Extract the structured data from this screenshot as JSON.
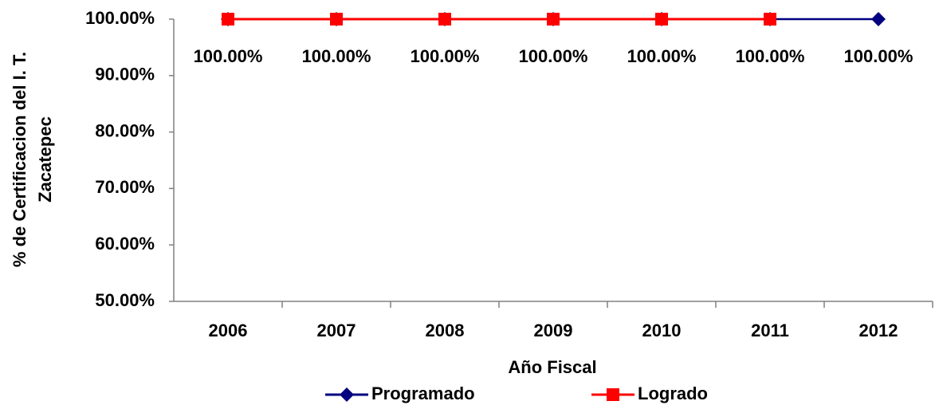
{
  "chart_data": {
    "type": "line",
    "x_label": "Año Fiscal",
    "y_label": [
      "%  de Certificacion del  I. T.",
      "Zacatepec"
    ],
    "categories": [
      "2006",
      "2007",
      "2008",
      "2009",
      "2010",
      "2011",
      "2012"
    ],
    "series": [
      {
        "name": "Programado",
        "color": "#000080",
        "marker": "diamond",
        "values": [
          100,
          100,
          100,
          100,
          100,
          100,
          100
        ],
        "value_labels": [
          "100.00%",
          "100.00%",
          "100.00%",
          "100.00%",
          "100.00%",
          "100.00%",
          "100.00%"
        ]
      },
      {
        "name": "Logrado",
        "color": "#ff0000",
        "marker": "square",
        "values": [
          100,
          100,
          100,
          100,
          100,
          100,
          null
        ]
      }
    ],
    "ylim": [
      50,
      100
    ],
    "yticks": [
      {
        "value": 50,
        "label": "50.00%"
      },
      {
        "value": 60,
        "label": "60.00%"
      },
      {
        "value": 70,
        "label": "70.00%"
      },
      {
        "value": 80,
        "label": "80.00%"
      },
      {
        "value": 90,
        "label": "90.00%"
      },
      {
        "value": 100,
        "label": "100.00%"
      }
    ],
    "grid": false,
    "legend": "bottom"
  }
}
